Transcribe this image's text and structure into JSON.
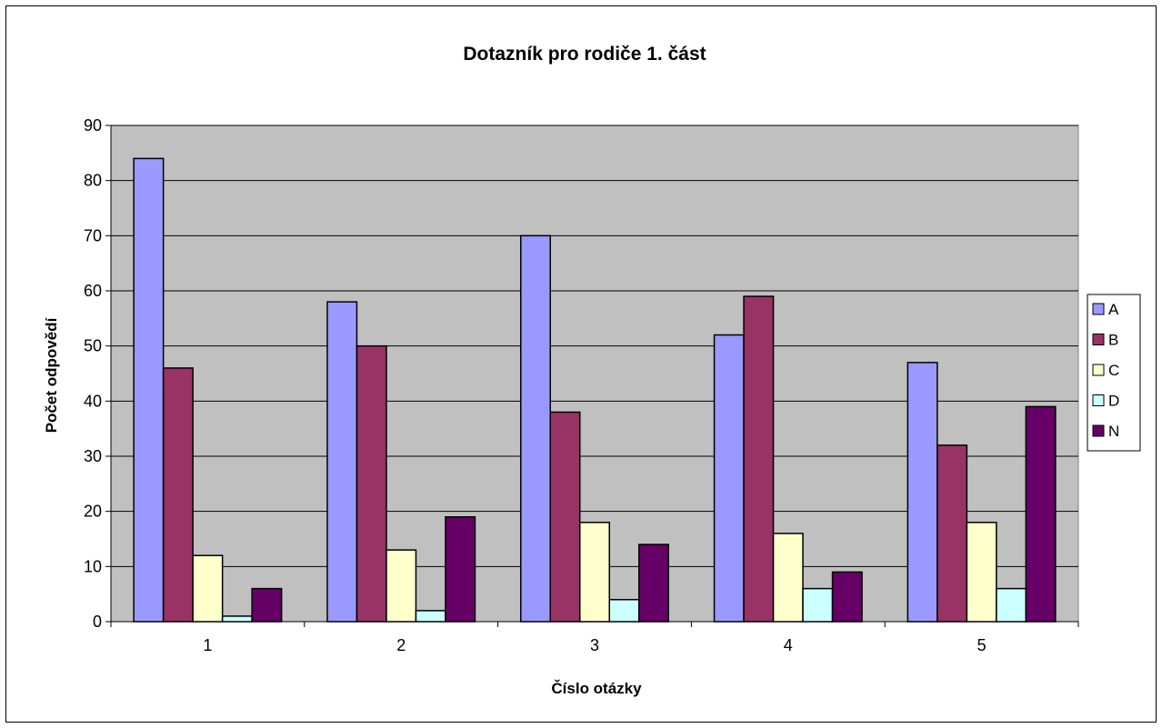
{
  "chart_data": {
    "type": "bar",
    "title": "Dotazník pro rodiče 1. část",
    "xlabel": "Číslo otázky",
    "ylabel": "Počet odpovědí",
    "ylim": [
      0,
      90
    ],
    "yticks": [
      0,
      10,
      20,
      30,
      40,
      50,
      60,
      70,
      80,
      90
    ],
    "categories": [
      "1",
      "2",
      "3",
      "4",
      "5"
    ],
    "grid": true,
    "legend_position": "right",
    "plot_background": "#c0c0c0",
    "series": [
      {
        "name": "A",
        "color": "#9999ff",
        "values": [
          84,
          58,
          70,
          52,
          47
        ]
      },
      {
        "name": "B",
        "color": "#993366",
        "values": [
          46,
          50,
          38,
          59,
          32
        ]
      },
      {
        "name": "C",
        "color": "#ffffcc",
        "values": [
          12,
          13,
          18,
          16,
          18
        ]
      },
      {
        "name": "D",
        "color": "#ccffff",
        "values": [
          1,
          2,
          4,
          6,
          6
        ]
      },
      {
        "name": "N",
        "color": "#660066",
        "values": [
          6,
          19,
          14,
          9,
          39
        ]
      }
    ]
  }
}
